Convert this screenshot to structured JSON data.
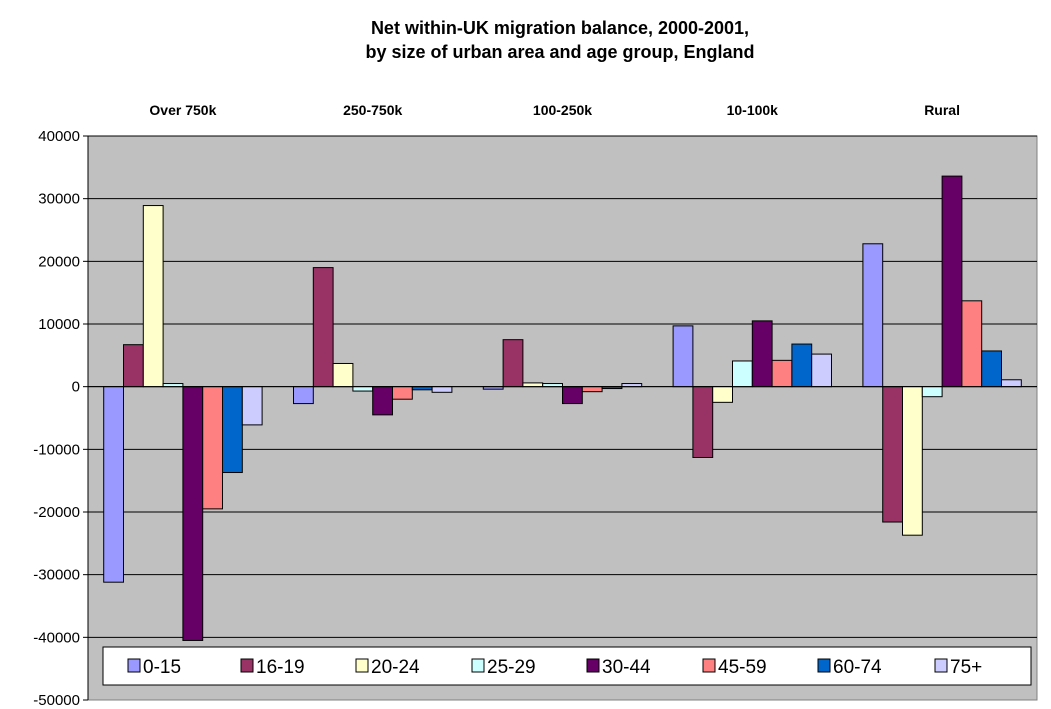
{
  "chart_data": {
    "type": "bar",
    "title": "Net within-UK migration balance, 2000-2001,",
    "subtitle": "by size of urban area and age group, England",
    "categories": [
      "Over 750k",
      "250-750k",
      "100-250k",
      "10-100k",
      "Rural"
    ],
    "category_position": "top",
    "ylim": [
      -50000,
      40000
    ],
    "yticks": [
      40000,
      30000,
      20000,
      10000,
      0,
      -10000,
      -20000,
      -30000,
      -40000,
      -50000
    ],
    "ytick_labels": [
      "40000",
      "30000",
      "20000",
      "10000",
      "0",
      "-10000",
      "-20000",
      "-30000",
      "-40000",
      "-50000"
    ],
    "grid": true,
    "legend_position": "bottom",
    "series": [
      {
        "name": "0-15",
        "color": "#9999ff",
        "values": [
          -31200,
          -2700,
          -400,
          9700,
          22800
        ]
      },
      {
        "name": "16-19",
        "color": "#993366",
        "values": [
          6700,
          19000,
          7500,
          -11300,
          -21600
        ]
      },
      {
        "name": "20-24",
        "color": "#ffffcc",
        "values": [
          28900,
          3700,
          600,
          -2500,
          -23700
        ]
      },
      {
        "name": "25-29",
        "color": "#ccffff",
        "values": [
          500,
          -700,
          500,
          4100,
          -1600
        ]
      },
      {
        "name": "30-44",
        "color": "#660066",
        "values": [
          -40500,
          -4500,
          -2700,
          10500,
          33600
        ]
      },
      {
        "name": "45-59",
        "color": "#ff8080",
        "values": [
          -19500,
          -2000,
          -800,
          4200,
          13700
        ]
      },
      {
        "name": "60-74",
        "color": "#0066cc",
        "values": [
          -13700,
          -500,
          -300,
          6800,
          5700
        ]
      },
      {
        "name": "75+",
        "color": "#ccccff",
        "values": [
          -6100,
          -900,
          500,
          5200,
          1100
        ]
      }
    ]
  }
}
